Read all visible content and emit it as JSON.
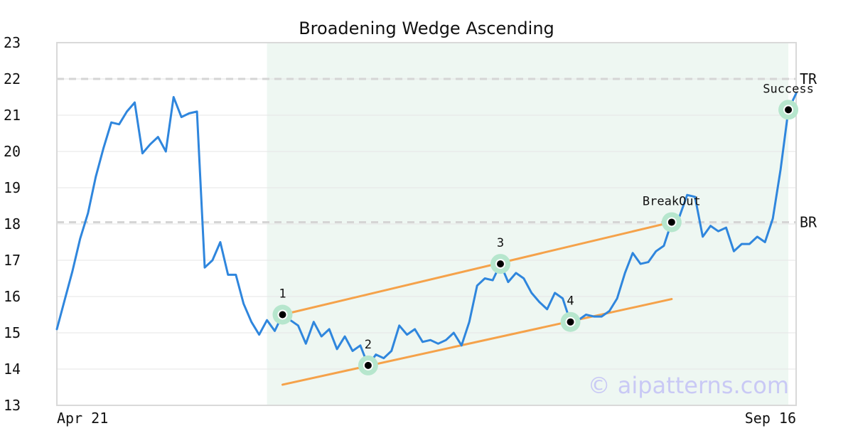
{
  "chart_data": {
    "type": "line",
    "title": "Broadening Wedge Ascending",
    "xlabel": "",
    "ylabel": "",
    "ylim": [
      13,
      23
    ],
    "yticks": [
      13,
      14,
      15,
      16,
      17,
      18,
      19,
      20,
      21,
      22,
      23
    ],
    "x_start_label": "Apr 21",
    "x_end_label": "Sep 16",
    "grid": true,
    "series": [
      {
        "values": [
          15.1,
          15.9,
          16.7,
          17.6,
          18.3,
          19.3,
          20.1,
          20.8,
          20.75,
          21.1,
          21.35,
          19.95,
          20.2,
          20.4,
          20.0,
          21.5,
          20.95,
          21.05,
          21.1,
          16.8,
          17.0,
          17.5,
          16.6,
          16.6,
          15.8,
          15.3,
          14.95,
          15.35,
          15.05,
          15.5,
          15.35,
          15.2,
          14.7,
          15.3,
          14.9,
          15.1,
          14.55,
          14.9,
          14.5,
          14.65,
          14.1,
          14.4,
          14.3,
          14.5,
          15.2,
          14.95,
          15.1,
          14.75,
          14.8,
          14.7,
          14.8,
          15.0,
          14.65,
          15.3,
          16.3,
          16.5,
          16.45,
          16.9,
          16.4,
          16.65,
          16.5,
          16.1,
          15.85,
          15.65,
          16.1,
          15.95,
          15.3,
          15.35,
          15.5,
          15.45,
          15.45,
          15.6,
          15.95,
          16.65,
          17.2,
          16.9,
          16.95,
          17.25,
          17.4,
          18.05,
          18.2,
          18.8,
          18.75,
          17.65,
          17.95,
          17.8,
          17.9,
          17.25,
          17.45,
          17.45,
          17.65,
          17.5,
          18.15,
          19.5,
          21.15,
          21.6
        ]
      }
    ],
    "shaded_region": {
      "from_index": 27,
      "to_index": 94
    },
    "levels": [
      {
        "label": "TR",
        "value": 22
      },
      {
        "label": "BR",
        "value": 18.05
      }
    ],
    "trendlines": [
      {
        "from": {
          "index": 29,
          "value": 15.5
        },
        "to": {
          "index": 79,
          "value": 18.05
        }
      },
      {
        "from": {
          "index": 29,
          "value": 13.57
        },
        "to": {
          "index": 79,
          "value": 15.93
        }
      }
    ],
    "points": [
      {
        "label": "1",
        "index": 29,
        "value": 15.5
      },
      {
        "label": "2",
        "index": 40,
        "value": 14.1
      },
      {
        "label": "3",
        "index": 57,
        "value": 16.9
      },
      {
        "label": "4",
        "index": 66,
        "value": 15.3
      },
      {
        "label": "BreakOut",
        "index": 79,
        "value": 18.05
      },
      {
        "label": "Success",
        "index": 94,
        "value": 21.15
      }
    ],
    "watermark": "© aipatterns.com",
    "colors": {
      "line": "#2f86dd",
      "trendline": "#f5a24a",
      "shade": "#eef7f2",
      "marker_halo": "#b6e6cd",
      "level": "#d5d5d5",
      "grid": "#e6e6e6"
    }
  }
}
